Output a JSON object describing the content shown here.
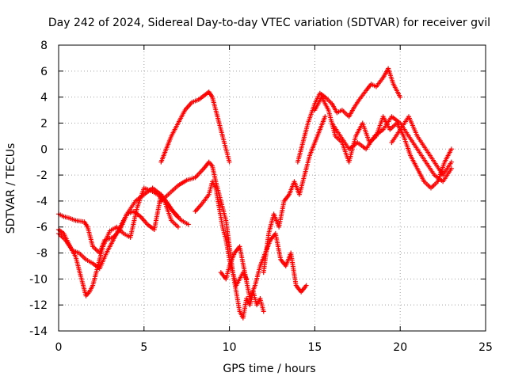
{
  "chart_data": {
    "type": "scatter",
    "title": "Day 242 of 2024, Sidereal Day-to-day VTEC variation (SDTVAR) for receiver gvil",
    "xlabel": "GPS time / hours",
    "ylabel": "SDTVAR / TECUs",
    "xlim": [
      0,
      25
    ],
    "ylim": [
      -14,
      8
    ],
    "xticks": [
      0,
      5,
      10,
      15,
      20,
      25
    ],
    "yticks": [
      -14,
      -12,
      -10,
      -8,
      -6,
      -4,
      -2,
      0,
      2,
      4,
      6,
      8
    ],
    "grid": true,
    "grid_style": "dotted",
    "marker": "+",
    "colors": {
      "series": "#ff0000",
      "axes": "#000000",
      "grid": "#a0a0a0"
    },
    "series": [
      {
        "x": [
          0.0,
          0.3,
          0.6,
          1.0,
          1.5,
          1.7,
          2.0,
          2.4,
          2.7,
          3.2,
          3.6,
          4.0,
          4.5,
          5.0,
          5.5,
          6.0,
          6.5,
          7.0
        ],
        "y": [
          -5.0,
          -5.2,
          -5.3,
          -5.5,
          -5.6,
          -6.0,
          -7.5,
          -8.0,
          -7.0,
          -6.8,
          -6.2,
          -5.0,
          -4.0,
          -3.5,
          -3.0,
          -3.5,
          -4.5,
          -5.2
        ]
      },
      {
        "x": [
          0.0,
          0.3,
          0.6,
          1.0,
          1.3,
          1.6,
          1.8,
          2.0,
          2.3,
          2.6,
          3.0,
          3.4,
          3.8,
          4.2,
          4.6,
          5.0,
          5.4,
          5.8,
          6.2,
          6.6,
          7.0
        ],
        "y": [
          -6.2,
          -6.5,
          -7.3,
          -8.3,
          -9.8,
          -11.3,
          -11.0,
          -10.5,
          -9.0,
          -7.5,
          -6.3,
          -6.0,
          -6.5,
          -6.8,
          -4.5,
          -3.0,
          -3.2,
          -3.5,
          -4.0,
          -5.5,
          -6.0
        ]
      },
      {
        "x": [
          0.0,
          0.4,
          0.8,
          1.2,
          1.6,
          2.0,
          2.4,
          2.8,
          3.2,
          3.6,
          4.0,
          4.4,
          4.8,
          5.2,
          5.6,
          6.0,
          6.4,
          6.8,
          7.2,
          7.6
        ],
        "y": [
          -6.5,
          -7.0,
          -7.8,
          -8.0,
          -8.5,
          -8.8,
          -9.2,
          -8.0,
          -7.0,
          -6.0,
          -5.0,
          -4.8,
          -5.2,
          -5.8,
          -6.2,
          -3.5,
          -4.2,
          -5.0,
          -5.5,
          -5.8
        ]
      },
      {
        "x": [
          6.0,
          6.3,
          6.6,
          7.0,
          7.4,
          7.8,
          8.2,
          8.6,
          8.8,
          9.0,
          9.3,
          9.6,
          9.8,
          10.0
        ],
        "y": [
          -1.0,
          0.0,
          1.0,
          2.0,
          3.0,
          3.6,
          3.8,
          4.2,
          4.4,
          4.0,
          2.5,
          1.0,
          0.0,
          -1.0
        ]
      },
      {
        "x": [
          6.0,
          6.5,
          7.0,
          7.5,
          8.0,
          8.5,
          8.8,
          9.0,
          9.2,
          9.5,
          9.8,
          10.0,
          10.2,
          10.4,
          10.6,
          10.8,
          11.0
        ],
        "y": [
          -4.0,
          -3.4,
          -2.8,
          -2.4,
          -2.2,
          -1.5,
          -1.0,
          -1.3,
          -2.5,
          -4.0,
          -5.5,
          -7.5,
          -9.5,
          -10.5,
          -10.0,
          -9.5,
          -10.0
        ]
      },
      {
        "x": [
          8.0,
          8.4,
          8.8,
          9.0,
          9.2,
          9.4,
          9.6,
          9.8,
          10.0,
          10.2,
          10.4,
          10.6,
          10.8,
          11.0,
          11.2,
          11.4,
          11.6,
          11.8,
          12.0
        ],
        "y": [
          -4.8,
          -4.2,
          -3.5,
          -2.5,
          -3.0,
          -4.5,
          -6.0,
          -7.0,
          -8.5,
          -9.5,
          -11.0,
          -12.5,
          -13.0,
          -11.5,
          -12.0,
          -11.0,
          -12.0,
          -11.5,
          -12.5
        ]
      },
      {
        "x": [
          9.5,
          9.8,
          10.0,
          10.3,
          10.6,
          10.9,
          11.2,
          11.5,
          11.8,
          12.1,
          12.4,
          12.7,
          13.0,
          13.3,
          13.6,
          13.9,
          14.2,
          14.5
        ],
        "y": [
          -9.5,
          -10.0,
          -9.0,
          -8.0,
          -7.5,
          -9.5,
          -11.5,
          -10.5,
          -9.0,
          -8.0,
          -7.0,
          -6.5,
          -8.5,
          -9.0,
          -8.0,
          -10.5,
          -11.0,
          -10.5
        ]
      },
      {
        "x": [
          12.0,
          12.3,
          12.6,
          12.9,
          13.2,
          13.5,
          13.8,
          14.1,
          14.4,
          14.7,
          15.0,
          15.3,
          15.6
        ],
        "y": [
          -9.5,
          -6.5,
          -5.0,
          -6.0,
          -4.0,
          -3.5,
          -2.5,
          -3.5,
          -2.0,
          -0.5,
          0.5,
          1.5,
          2.5
        ]
      },
      {
        "x": [
          14.0,
          14.3,
          14.6,
          15.0,
          15.3,
          15.6,
          16.0,
          16.3,
          16.6,
          17.0,
          17.3,
          17.6,
          18.0,
          18.3,
          18.6,
          19.0,
          19.3,
          19.6,
          20.0
        ],
        "y": [
          -1.0,
          0.5,
          2.0,
          3.5,
          4.3,
          4.0,
          3.5,
          2.8,
          3.0,
          2.5,
          3.2,
          3.8,
          4.5,
          5.0,
          4.8,
          5.5,
          6.2,
          5.0,
          4.0
        ]
      },
      {
        "x": [
          15.0,
          15.4,
          15.8,
          16.2,
          16.6,
          17.0,
          17.4,
          17.8,
          18.2,
          18.6,
          19.0,
          19.4,
          19.8,
          20.2,
          20.6,
          21.0,
          21.4,
          21.8,
          22.2,
          22.6,
          23.0
        ],
        "y": [
          3.0,
          4.0,
          3.0,
          1.0,
          0.5,
          -1.0,
          1.0,
          2.0,
          0.5,
          1.0,
          2.5,
          1.5,
          2.0,
          1.0,
          -0.5,
          -1.5,
          -2.5,
          -3.0,
          -2.5,
          -1.0,
          0.0
        ]
      },
      {
        "x": [
          16.0,
          16.5,
          17.0,
          17.5,
          18.0,
          18.5,
          19.0,
          19.5,
          20.0,
          20.5,
          21.0,
          21.5,
          22.0,
          22.5,
          23.0
        ],
        "y": [
          2.0,
          1.0,
          0.0,
          0.5,
          0.0,
          1.0,
          1.5,
          2.5,
          2.0,
          1.0,
          0.0,
          -1.0,
          -2.0,
          -2.5,
          -1.5
        ]
      },
      {
        "x": [
          19.5,
          20.0,
          20.5,
          21.0,
          21.5,
          22.0,
          22.5,
          23.0
        ],
        "y": [
          0.5,
          1.5,
          2.5,
          1.0,
          0.0,
          -1.0,
          -2.0,
          -1.0
        ]
      }
    ]
  }
}
